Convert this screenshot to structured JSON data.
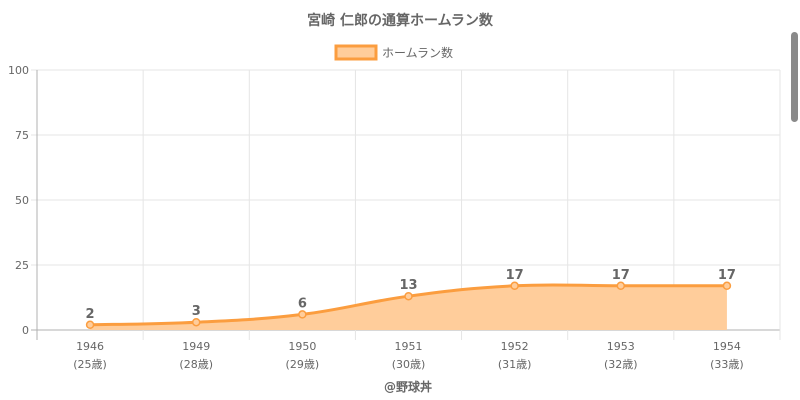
{
  "chart_data": {
    "type": "area",
    "title": "宮崎 仁郎の通算ホームラン数",
    "categories": [
      "1946",
      "1949",
      "1950",
      "1951",
      "1952",
      "1953",
      "1954"
    ],
    "category_sublabels": [
      "(25歳)",
      "(28歳)",
      "(29歳)",
      "(30歳)",
      "(31歳)",
      "(32歳)",
      "(33歳)"
    ],
    "series": [
      {
        "name": "ホームラン数",
        "values": [
          2,
          3,
          6,
          13,
          17,
          17,
          17
        ]
      }
    ],
    "ylim": [
      0,
      100
    ],
    "yticks": [
      0,
      25,
      50,
      75,
      100
    ],
    "xlabel": "@野球丼",
    "ylabel": "",
    "grid": true,
    "legend_position": "top-center",
    "colors": {
      "line": "#fb9d3f",
      "fill": "#ffcd9b",
      "grid": "#e5e5e5",
      "axis": "#b0b0b0"
    }
  }
}
